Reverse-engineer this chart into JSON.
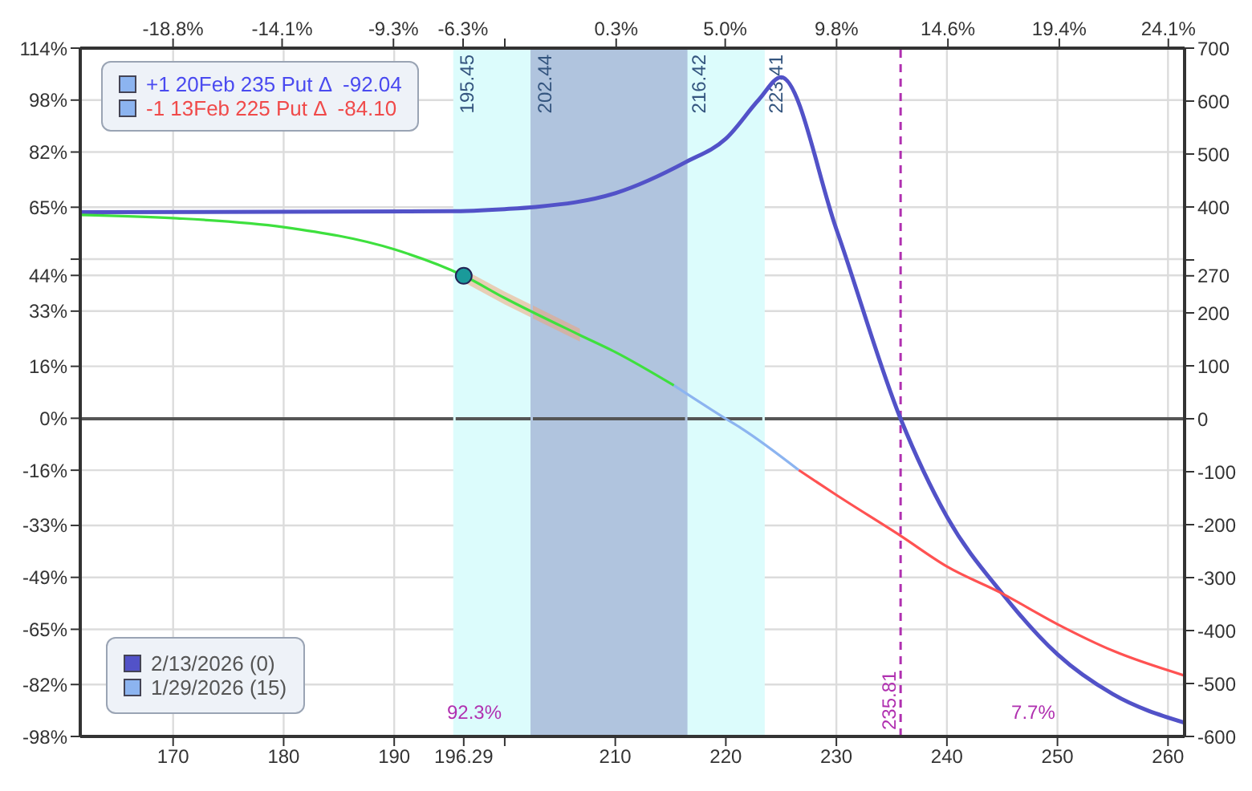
{
  "chart_data": {
    "type": "line",
    "xlim": [
      161.6,
      261.5
    ],
    "xticks": [
      170,
      180,
      190,
      196.29,
      {
        "value": 200,
        "label": null
      },
      210,
      220,
      230,
      240,
      250,
      260
    ],
    "x2lim": [
      -22.8,
      24.8
    ],
    "x2ticks": [
      {
        "value": -18.8,
        "label": "-18.8%"
      },
      {
        "value": -14.1,
        "label": "-14.1%"
      },
      {
        "value": -9.3,
        "label": "-9.3%"
      },
      {
        "value": -6.3,
        "label": "-6.3%"
      },
      {
        "value": -4.5,
        "label": null
      },
      {
        "value": 0.3,
        "label": "0.3%"
      },
      {
        "value": 5.0,
        "label": "5.0%"
      },
      {
        "value": 9.8,
        "label": "9.8%"
      },
      {
        "value": 14.6,
        "label": "14.6%"
      },
      {
        "value": 19.4,
        "label": "19.4%"
      },
      {
        "value": 24.1,
        "label": "24.1%"
      }
    ],
    "ylim": [
      -98,
      114
    ],
    "yticks": [
      {
        "value": -98,
        "label": "-98%"
      },
      {
        "value": -82,
        "label": "-82%"
      },
      {
        "value": -65,
        "label": "-65%"
      },
      {
        "value": -49,
        "label": "-49%"
      },
      {
        "value": -33,
        "label": "-33%"
      },
      {
        "value": -16,
        "label": "-16%"
      },
      {
        "value": 0,
        "label": "0%"
      },
      {
        "value": 16,
        "label": "16%"
      },
      {
        "value": 33,
        "label": "33%"
      },
      {
        "value": 44,
        "label": "44%"
      },
      {
        "value": 49,
        "label": null
      },
      {
        "value": 65,
        "label": "65%"
      },
      {
        "value": 82,
        "label": "82%"
      },
      {
        "value": 98,
        "label": "98%"
      },
      {
        "value": 114,
        "label": "114%"
      }
    ],
    "y2lim": [
      -600,
      700
    ],
    "y2ticks": [
      -600,
      -500,
      -400,
      -300,
      -200,
      -100,
      0,
      100,
      200,
      270,
      {
        "value": 300,
        "label": null
      },
      400,
      500,
      600,
      700
    ],
    "grid": true,
    "legend": "bottom left",
    "marker": "none",
    "line_style": "solid",
    "series": [
      {
        "name": "2/13/2026 (0)",
        "axis": "y2",
        "color": "#5252c8",
        "x": [
          161.6,
          195,
          200,
          202.8,
          210,
          216.4,
          220,
          223,
          225,
          230,
          235.81,
          240,
          245,
          250,
          255,
          261.5
        ],
        "values": [
          390,
          392,
          396,
          400,
          426,
          485,
          529,
          603,
          645,
          358,
          0,
          -185,
          -330,
          -445,
          -520,
          -574
        ]
      },
      {
        "name": "1/29/2026 (15)",
        "axis": "y2",
        "color": "#8cb4f0",
        "x": [
          215.3,
          220,
          221.4,
          226.6
        ],
        "values": [
          63,
          0,
          -18,
          -97
        ]
      },
      {
        "axis": "y2",
        "color": "#3ee03e",
        "x": [
          161.6,
          170,
          180,
          190,
          196.29,
          200,
          206.8,
          210,
          215.3
        ],
        "values": [
          385,
          379,
          362,
          320,
          270,
          228,
          158,
          126,
          63
        ],
        "lower": [
          null,
          null,
          null,
          null,
          258,
          216,
          146,
          null,
          null
        ],
        "upper": [
          null,
          null,
          null,
          null,
          282,
          240,
          170,
          null,
          null
        ]
      },
      {
        "axis": "y2",
        "color": "#ff5252",
        "x": [
          226.6,
          230,
          235.81,
          240,
          245,
          250,
          255,
          261.5
        ],
        "values": [
          -97,
          -144,
          -221,
          -279,
          -330,
          -388,
          -438,
          -485
        ]
      },
      {
        "type": "scatter",
        "axis": "y2",
        "color": "#1a9a9a",
        "marker": "circle",
        "x": [
          196.29
        ],
        "values": [
          270
        ]
      }
    ],
    "bands": [
      {
        "axis": "x",
        "from": 195.45,
        "to": 223.41,
        "color": "#dcfcfc"
      },
      {
        "axis": "x",
        "from": 202.44,
        "to": 216.42,
        "color": "#b0c4de"
      }
    ],
    "ref_lines": [
      {
        "axis": "y2",
        "value": 0,
        "color": "#555555",
        "line_style": "solid"
      },
      {
        "axis": "x",
        "value": 195.45,
        "label": "195.45",
        "color": "#dcfcfc",
        "line_style": "solid"
      },
      {
        "axis": "x",
        "value": 202.44,
        "label": "202.44",
        "color": "#b0c4de",
        "line_style": "solid"
      },
      {
        "axis": "x",
        "value": 216.42,
        "label": "216.42",
        "color": "#b0c4de",
        "line_style": "solid"
      },
      {
        "axis": "x",
        "value": 223.41,
        "label": "223.41",
        "color": "#dcfcfc",
        "line_style": "solid"
      },
      {
        "axis": "x",
        "value": 235.81,
        "label": "235.81",
        "color": "#b030b0",
        "line_style": "dashed"
      }
    ],
    "annotations": [
      "+1 20Feb 235 Put Δ  -92.04",
      "-1 13Feb 225 Put Δ  -84.10",
      "92.3%",
      "7.7%"
    ]
  }
}
